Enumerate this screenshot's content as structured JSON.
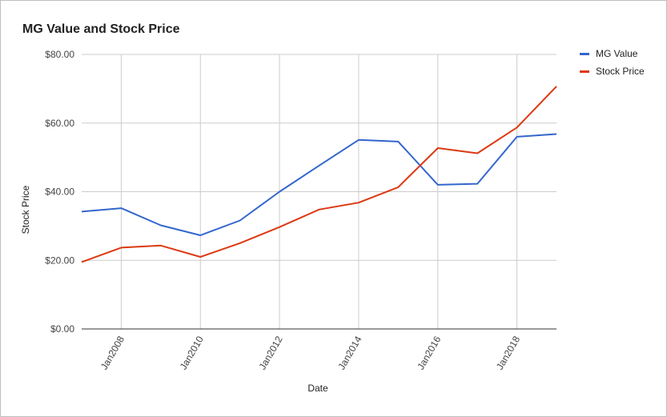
{
  "chart_data": {
    "type": "line",
    "title": "MG Value and Stock Price",
    "xlabel": "Date",
    "ylabel": "Stock Price",
    "x": [
      "2007-01",
      "2008-01",
      "2009-01",
      "2010-01",
      "2011-01",
      "2012-01",
      "2013-01",
      "2014-01",
      "2015-01",
      "2016-01",
      "2017-01",
      "2018-01",
      "2019-01"
    ],
    "x_ticks": [
      "Jan2008",
      "Jan2010",
      "Jan2012",
      "Jan2014",
      "Jan2016",
      "Jan2018"
    ],
    "y_ticks": [
      "$0.00",
      "$20.00",
      "$40.00",
      "$60.00",
      "$80.00"
    ],
    "ylim": [
      0,
      80
    ],
    "grid": true,
    "legend_position": "right",
    "series": [
      {
        "name": "MG Value",
        "color": "#3366cc",
        "values": [
          34.2,
          35.2,
          30.2,
          27.3,
          31.6,
          40.0,
          47.6,
          55.1,
          54.6,
          42.0,
          42.3,
          56.0,
          56.8
        ]
      },
      {
        "name": "Stock Price",
        "color": "#dc3912",
        "values": [
          19.5,
          23.7,
          24.3,
          21.0,
          25.0,
          29.7,
          34.8,
          36.8,
          41.3,
          52.7,
          51.2,
          58.7,
          70.7
        ]
      }
    ]
  }
}
